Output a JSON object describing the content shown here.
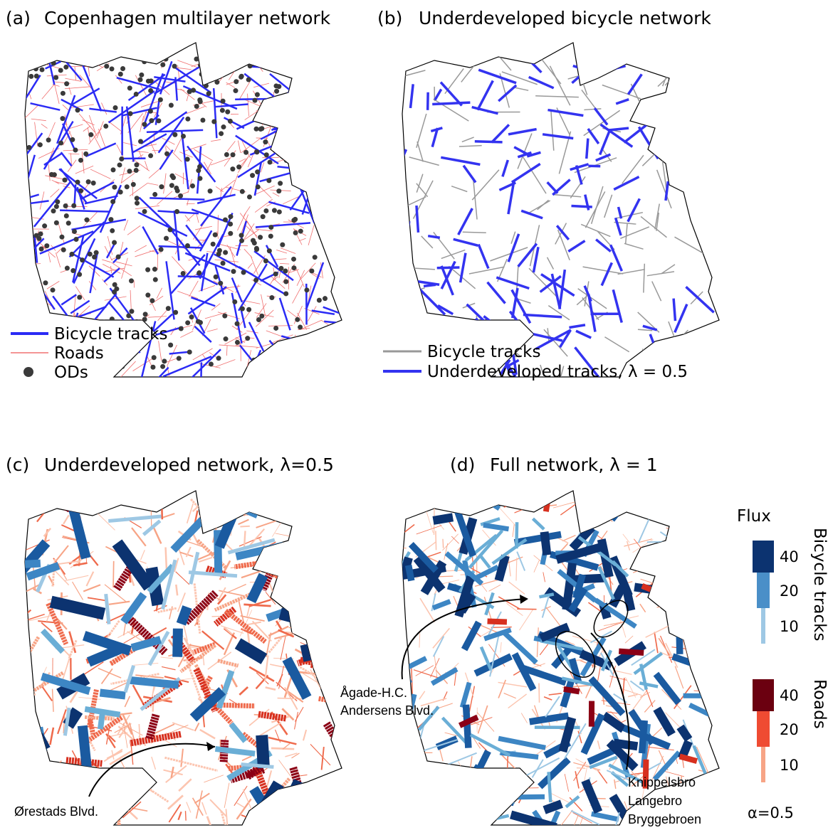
{
  "panels": [
    {
      "label": "(a)",
      "title": "Copenhagen multilayer network",
      "legend": [
        "Bicycle tracks",
        "Roads",
        "ODs"
      ]
    },
    {
      "label": "(b)",
      "title": "Underdeveloped bicycle network",
      "legend": [
        "Bicycle tracks",
        "Underdeveloped tracks, λ = 0.5"
      ]
    },
    {
      "label": "(c)",
      "title": "Underdeveloped network, λ=0.5",
      "annotations": [
        [
          "Ørestads Blvd."
        ]
      ]
    },
    {
      "label": "(d)",
      "title": "Full network, λ = 1",
      "annotations": [
        [
          "Ågade-H.C.",
          "Andersens Blvd."
        ],
        [
          "Knippelsbro",
          "Langebro",
          "Bryggebroen"
        ]
      ]
    }
  ],
  "colorbar": {
    "title": "Flux",
    "bicycle": {
      "label": "Bicycle tracks",
      "ticks": [
        "40",
        "20",
        "10"
      ]
    },
    "roads": {
      "label": "Roads",
      "ticks": [
        "40",
        "20",
        "10"
      ]
    },
    "alpha": "α=0.5"
  }
}
